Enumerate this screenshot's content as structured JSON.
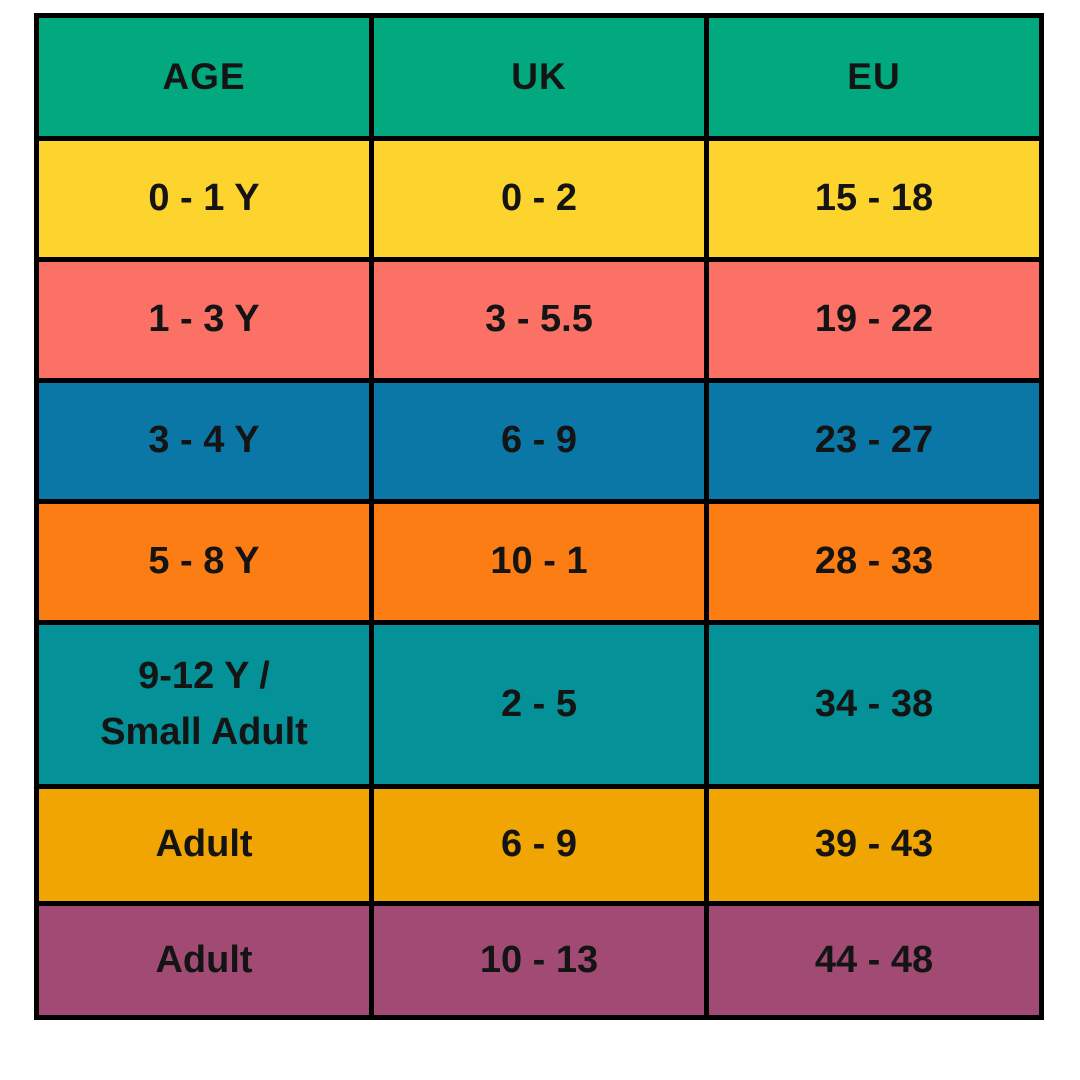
{
  "colors": {
    "page_background": "#FFFFFF",
    "border": "#000000",
    "text": "#141414",
    "header_green": "#02A87E",
    "row_yellow": "#FDD32D",
    "row_coral": "#FB7166",
    "row_blue": "#0B77A7",
    "row_orange": "#FB7D14",
    "row_teal": "#049298",
    "row_amber": "#F0A502",
    "row_plum": "#A14B74"
  },
  "chart_data": {
    "type": "table",
    "columns": [
      "AGE",
      "UK",
      "EU"
    ],
    "header_color": "#02A87E",
    "rows": [
      {
        "age": "0 - 1 Y",
        "uk": "0 - 2",
        "eu": "15 - 18",
        "color": "#FDD32D"
      },
      {
        "age": "1 - 3 Y",
        "uk": "3 - 5.5",
        "eu": "19 - 22",
        "color": "#FB7166"
      },
      {
        "age": "3 - 4 Y",
        "uk": "6 - 9",
        "eu": "23 - 27",
        "color": "#0B77A7"
      },
      {
        "age": "5 - 8 Y",
        "uk": "10 - 1",
        "eu": "28 - 33",
        "color": "#FB7D14"
      },
      {
        "age": "9-12 Y /\nSmall Adult",
        "uk": "2 - 5",
        "eu": "34 - 38",
        "color": "#049298"
      },
      {
        "age": "Adult",
        "uk": "6 - 9",
        "eu": "39 - 43",
        "color": "#F0A502"
      },
      {
        "age": "Adult",
        "uk": "10 - 13",
        "eu": "44 - 48",
        "color": "#A14B74"
      }
    ]
  }
}
